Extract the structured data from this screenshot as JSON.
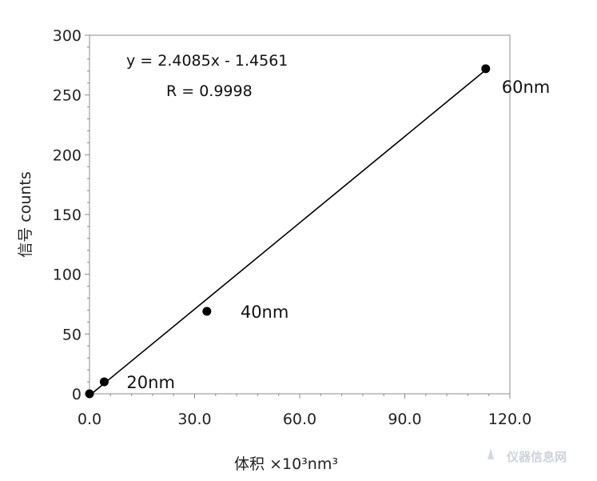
{
  "chart_data": {
    "type": "scatter",
    "title": "",
    "xlabel": "体积 ×10³nm³",
    "ylabel": "信号 counts",
    "xlim": [
      0,
      120
    ],
    "ylim": [
      0,
      300
    ],
    "x_ticks": [
      0,
      30,
      60,
      90,
      120
    ],
    "x_tick_labels": [
      "0.0",
      "30.0",
      "60.0",
      "90.0",
      "120.0"
    ],
    "y_ticks": [
      0,
      50,
      100,
      150,
      200,
      250,
      300
    ],
    "y_tick_labels": [
      "0",
      "50",
      "100",
      "150",
      "200",
      "250",
      "300"
    ],
    "grid": false,
    "series": [
      {
        "x": [
          0,
          4.2,
          33.5,
          113.1
        ],
        "y": [
          0,
          10,
          69,
          272
        ],
        "point_labels": [
          "",
          "20nm",
          "40nm",
          "60nm"
        ]
      }
    ],
    "trendline": {
      "slope": 2.4085,
      "intercept": -1.4561,
      "x_range": [
        0,
        113.1
      ],
      "equation_text": "y = 2.4085x - 1.4561",
      "r_text": "R = 0.9998"
    },
    "colors": {
      "marker": "#000000",
      "line": "#000000",
      "axis": "#8c8c8c"
    }
  },
  "watermark": {
    "text": "仪器信息网"
  }
}
